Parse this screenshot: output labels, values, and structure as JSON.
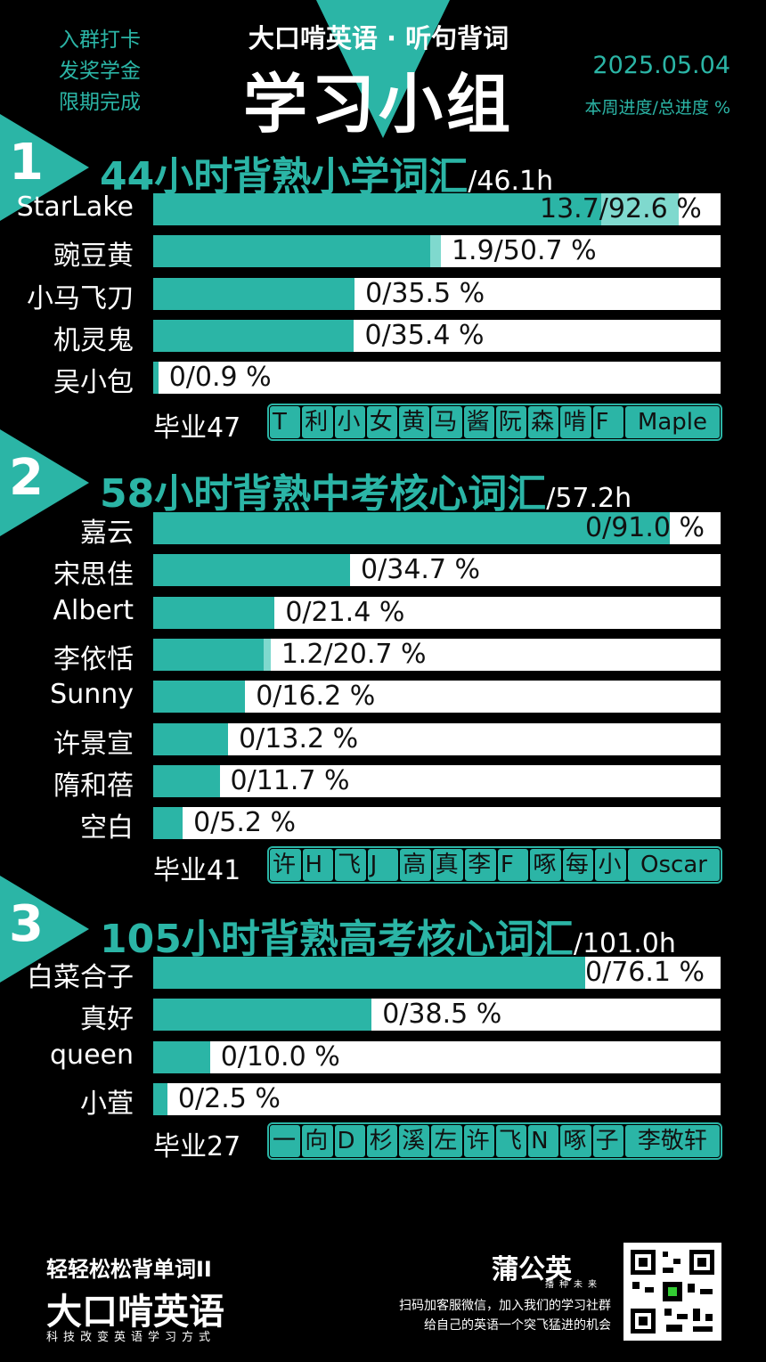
{
  "header": {
    "left_notes": [
      "入群打卡",
      "发奖学金",
      "限期完成"
    ],
    "top_line": "大口啃英语 · 听句背词",
    "main_title": "学习小组",
    "date": "2025.05.04",
    "subtitle": "本周进度/总进度 %"
  },
  "colors": {
    "accent": "#2bb5a6",
    "accent_light": "#7fd9ce",
    "background": "#000000"
  },
  "sections": [
    {
      "number": "1",
      "title": "44小时背熟小学词汇",
      "total": "/46.1h",
      "members": [
        {
          "name": "StarLake",
          "week": 13.7,
          "total": 92.6,
          "label": "13.7/92.6 %"
        },
        {
          "name": "豌豆黄",
          "week": 1.9,
          "total": 50.7,
          "label": "1.9/50.7 %"
        },
        {
          "name": "小马飞刀",
          "week": 0,
          "total": 35.5,
          "label": "0/35.5 %"
        },
        {
          "name": "机灵鬼",
          "week": 0,
          "total": 35.4,
          "label": "0/35.4 %"
        },
        {
          "name": "吴小包",
          "week": 0,
          "total": 0.9,
          "label": "0/0.9 %"
        }
      ],
      "graduated_label": "毕业47",
      "graduates": [
        "T",
        "利",
        "小",
        "女",
        "黄",
        "马",
        "酱",
        "阮",
        "森",
        "啃",
        "F",
        "Maple"
      ]
    },
    {
      "number": "2",
      "title": "58小时背熟中考核心词汇",
      "total": "/57.2h",
      "members": [
        {
          "name": "嘉云",
          "week": 0,
          "total": 91.0,
          "label": "0/91.0 %"
        },
        {
          "name": "宋思佳",
          "week": 0,
          "total": 34.7,
          "label": "0/34.7 %"
        },
        {
          "name": "Albert",
          "week": 0,
          "total": 21.4,
          "label": "0/21.4 %"
        },
        {
          "name": "李依恬",
          "week": 1.2,
          "total": 20.7,
          "label": "1.2/20.7 %"
        },
        {
          "name": "Sunny",
          "week": 0,
          "total": 16.2,
          "label": "0/16.2 %"
        },
        {
          "name": "许景宣",
          "week": 0,
          "total": 13.2,
          "label": "0/13.2 %"
        },
        {
          "name": "隋和蓓",
          "week": 0,
          "total": 11.7,
          "label": "0/11.7 %"
        },
        {
          "name": "空白",
          "week": 0,
          "total": 5.2,
          "label": "0/5.2 %"
        }
      ],
      "graduated_label": "毕业41",
      "graduates": [
        "许",
        "H",
        "飞",
        "J",
        "高",
        "真",
        "李",
        "F",
        "啄",
        "每",
        "小",
        "Oscar"
      ]
    },
    {
      "number": "3",
      "title": "105小时背熟高考核心词汇",
      "total": "/101.0h",
      "members": [
        {
          "name": "白菜合子",
          "week": 0,
          "total": 76.1,
          "label": "0/76.1 %"
        },
        {
          "name": "真好",
          "week": 0,
          "total": 38.5,
          "label": "0/38.5 %"
        },
        {
          "name": "queen",
          "week": 0,
          "total": 10.0,
          "label": "0/10.0 %"
        },
        {
          "name": "小萓",
          "week": 0,
          "total": 2.5,
          "label": "0/2.5 %"
        }
      ],
      "graduated_label": "毕业27",
      "graduates": [
        "一",
        "向",
        "D",
        "杉",
        "溪",
        "左",
        "许",
        "飞",
        "N",
        "啄",
        "子",
        "李敬轩"
      ]
    }
  ],
  "footer": {
    "logo_small": "轻轻松松背单词II",
    "logo_big": "大口啃英语",
    "logo_sub": "科技改变英语学习方式",
    "brand": "蒲公英",
    "brand_sub": "播种未来",
    "line1": "扫码加客服微信，加入我们的学习社群",
    "line2": "给自己的英语一个突飞猛进的机会"
  }
}
